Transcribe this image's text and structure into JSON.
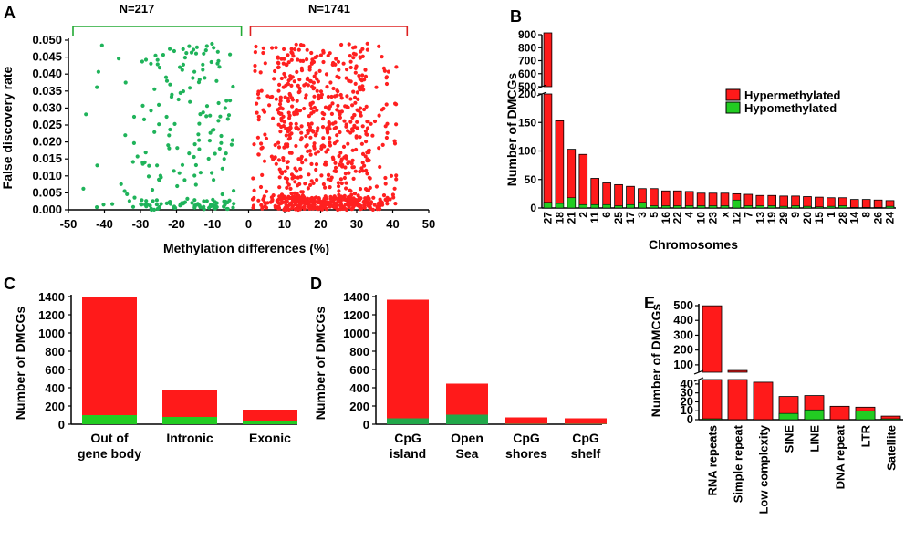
{
  "colors": {
    "hyper": "#ff1a1a",
    "hypo": "#22cc22",
    "hypo_dark": "#21a84a",
    "red_dot": "#ff2020",
    "green_dot": "#1fb35a",
    "bracket_green": "#22aa33",
    "bracket_red": "#dd2020"
  },
  "chart_data": [
    {
      "panel": "A",
      "type": "scatter",
      "xlabel": "Methylation differences (%)",
      "ylabel": "False discovery rate",
      "xlim": [
        -50,
        50
      ],
      "ylim": [
        0,
        0.05
      ],
      "xticks": [
        "-50",
        "-40",
        "-30",
        "-20",
        "-10",
        "0",
        "10",
        "20",
        "30",
        "40",
        "50"
      ],
      "yticks": [
        "0.000",
        "0.005",
        "0.010",
        "0.015",
        "0.020",
        "0.025",
        "0.030",
        "0.035",
        "0.040",
        "0.045",
        "0.050"
      ],
      "groups": [
        {
          "name": "Hypomethylated",
          "label": "N=217",
          "n": 217,
          "x_range": [
            -48,
            -2
          ]
        },
        {
          "name": "Hypermethylated",
          "label": "N=1741",
          "n": 1741,
          "x_range": [
            1,
            45
          ]
        }
      ]
    },
    {
      "panel": "B",
      "type": "bar",
      "stacked": true,
      "xlabel": "Chromosomes",
      "ylabel": "Number of DMCGs",
      "y_break": [
        200,
        500
      ],
      "ylim": [
        0,
        900
      ],
      "yticks_lower": [
        "0",
        "50",
        "100",
        "150",
        "200"
      ],
      "yticks_upper": [
        "500",
        "600",
        "700",
        "800",
        "900"
      ],
      "categories": [
        "27",
        "18",
        "21",
        "2",
        "11",
        "6",
        "25",
        "17",
        "3",
        "5",
        "16",
        "22",
        "4",
        "10",
        "23",
        "x",
        "12",
        "7",
        "13",
        "19",
        "29",
        "9",
        "20",
        "15",
        "1",
        "28",
        "14",
        "8",
        "26",
        "24"
      ],
      "series": [
        {
          "name": "Hypermethylated",
          "values": [
            890,
            145,
            85,
            88,
            46,
            38,
            37,
            32,
            24,
            30,
            26,
            26,
            25,
            22,
            22,
            22,
            11,
            20,
            18,
            18,
            18,
            17,
            17,
            17,
            15,
            14,
            14,
            14,
            13,
            10
          ]
        },
        {
          "name": "Hypomethylated",
          "values": [
            10,
            8,
            18,
            6,
            6,
            6,
            4,
            6,
            10,
            4,
            4,
            4,
            4,
            4,
            4,
            4,
            14,
            4,
            4,
            4,
            3,
            4,
            3,
            2,
            3,
            4,
            1,
            1,
            1,
            3
          ]
        }
      ],
      "legend": [
        "Hypermethylated",
        "Hypomethylated"
      ]
    },
    {
      "panel": "C",
      "type": "bar",
      "stacked": true,
      "ylabel": "Number of DMCGs",
      "ylim": [
        0,
        1400
      ],
      "yticks": [
        "0",
        "200",
        "400",
        "600",
        "800",
        "1000",
        "1200",
        "1400"
      ],
      "categories": [
        [
          "Out of",
          "gene body"
        ],
        [
          "Intronic"
        ],
        [
          "Exonic"
        ]
      ],
      "series": [
        {
          "name": "Hypermethylated",
          "values": [
            1300,
            300,
            120
          ]
        },
        {
          "name": "Hypomethylated",
          "values": [
            100,
            80,
            40
          ]
        }
      ]
    },
    {
      "panel": "D",
      "type": "bar",
      "stacked": true,
      "ylabel": "Number  of DMCGs",
      "ylim": [
        0,
        1400
      ],
      "yticks": [
        "0",
        "200",
        "400",
        "600",
        "800",
        "1000",
        "1200",
        "1400"
      ],
      "categories": [
        [
          "CpG",
          "island"
        ],
        [
          "Open",
          "Sea"
        ],
        [
          "CpG",
          "shores"
        ],
        [
          "CpG",
          "shelf"
        ]
      ],
      "series": [
        {
          "name": "Hypermethylated",
          "values": [
            1300,
            340,
            70,
            60
          ]
        },
        {
          "name": "Hypomethylated",
          "values": [
            65,
            105,
            5,
            5
          ]
        }
      ]
    },
    {
      "panel": "E",
      "type": "bar",
      "stacked": true,
      "ylabel": "Number of DMCGs",
      "y_break": [
        45,
        50
      ],
      "ylim": [
        0,
        500
      ],
      "yticks_lower": [
        "0",
        "10",
        "20",
        "30",
        "40"
      ],
      "yticks_upper": [
        "100",
        "200",
        "300",
        "400",
        "500"
      ],
      "categories": [
        "RNA repeats",
        "Simple repeat",
        "Low complexity",
        "SINE",
        "LINE",
        "DNA repeat",
        "LTR",
        "Satellite"
      ],
      "series": [
        {
          "name": "Hypermethylated",
          "values": [
            498,
            62,
            42,
            19,
            16,
            15,
            4,
            3
          ]
        },
        {
          "name": "Hypomethylated",
          "values": [
            1,
            0,
            0,
            7,
            11,
            0,
            10,
            1
          ]
        }
      ]
    }
  ]
}
